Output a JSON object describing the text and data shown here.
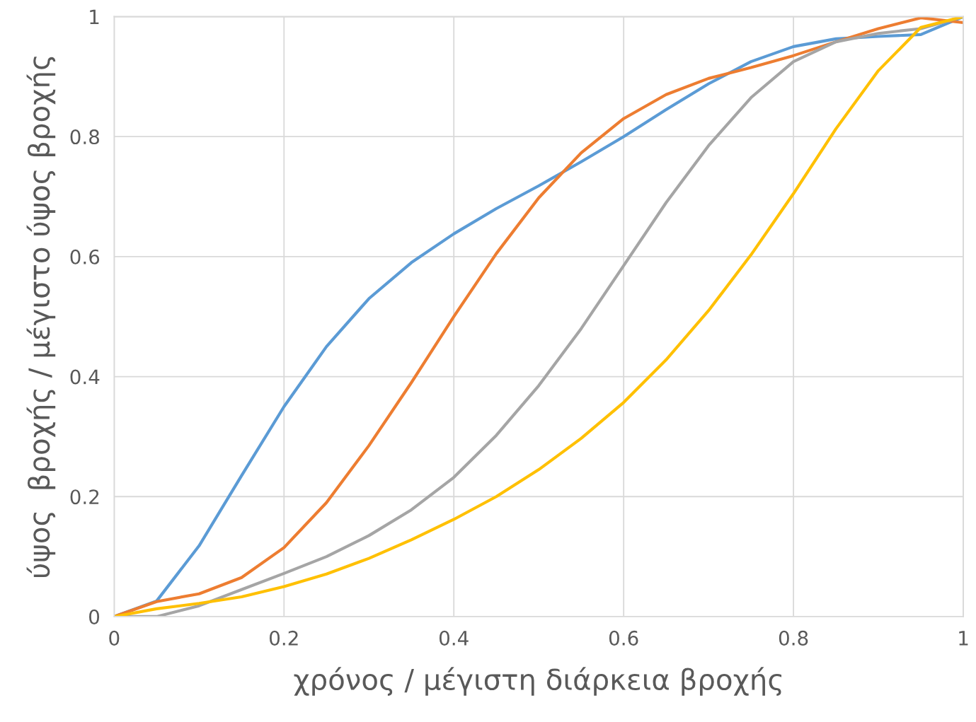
{
  "chart_data": {
    "type": "line",
    "xlabel": "χρόνος / μέγιστη διάρκεια βροχής",
    "ylabel": "ύψος  βροχής / μέγιστο ύψος βροχής",
    "x": [
      0,
      0.05,
      0.1,
      0.15,
      0.2,
      0.25,
      0.3,
      0.35,
      0.4,
      0.45,
      0.5,
      0.55,
      0.6,
      0.65,
      0.7,
      0.75,
      0.8,
      0.85,
      0.9,
      0.95,
      1
    ],
    "series": [
      {
        "color": "#5b9bd5",
        "values": [
          0,
          0.026,
          0.118,
          0.235,
          0.35,
          0.45,
          0.53,
          0.59,
          0.638,
          0.68,
          0.718,
          0.758,
          0.8,
          0.845,
          0.888,
          0.925,
          0.95,
          0.963,
          0.967,
          0.97,
          1.0
        ]
      },
      {
        "color": "#ed7d31",
        "values": [
          0,
          0.025,
          0.038,
          0.065,
          0.115,
          0.19,
          0.285,
          0.39,
          0.5,
          0.605,
          0.698,
          0.773,
          0.83,
          0.87,
          0.897,
          0.915,
          0.935,
          0.958,
          0.98,
          0.998,
          0.99
        ]
      },
      {
        "color": "#a5a5a5",
        "values": [
          0,
          0,
          0.018,
          0.045,
          0.072,
          0.1,
          0.135,
          0.178,
          0.232,
          0.302,
          0.385,
          0.48,
          0.585,
          0.69,
          0.785,
          0.865,
          0.925,
          0.958,
          0.972,
          0.98,
          1.0
        ]
      },
      {
        "color": "#ffc000",
        "values": [
          0,
          0.013,
          0.022,
          0.033,
          0.05,
          0.071,
          0.097,
          0.128,
          0.162,
          0.2,
          0.245,
          0.297,
          0.357,
          0.428,
          0.51,
          0.603,
          0.705,
          0.813,
          0.91,
          0.982,
          1.0
        ]
      }
    ],
    "xlim": [
      0,
      1
    ],
    "ylim": [
      0,
      1
    ],
    "xticks": [
      0,
      0.2,
      0.4,
      0.6,
      0.8,
      1
    ],
    "yticks": [
      0,
      0.2,
      0.4,
      0.6,
      0.8,
      1
    ],
    "grid": true,
    "marker": "none",
    "line_style": "solid"
  }
}
